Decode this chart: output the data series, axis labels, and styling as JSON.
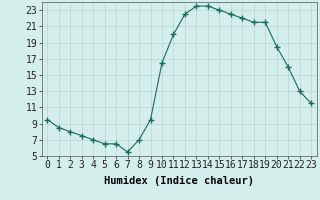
{
  "x": [
    0,
    1,
    2,
    3,
    4,
    5,
    6,
    7,
    8,
    9,
    10,
    11,
    12,
    13,
    14,
    15,
    16,
    17,
    18,
    19,
    20,
    21,
    22,
    23
  ],
  "y": [
    9.5,
    8.5,
    8.0,
    7.5,
    7.0,
    6.5,
    6.5,
    5.5,
    7.0,
    9.5,
    16.5,
    20.0,
    22.5,
    23.5,
    23.5,
    23.0,
    22.5,
    22.0,
    21.5,
    21.5,
    18.5,
    16.0,
    13.0,
    11.5
  ],
  "xlabel": "Humidex (Indice chaleur)",
  "ylim": [
    5,
    24
  ],
  "xlim": [
    -0.5,
    23.5
  ],
  "yticks": [
    5,
    7,
    9,
    11,
    13,
    15,
    17,
    19,
    21,
    23
  ],
  "xticks": [
    0,
    1,
    2,
    3,
    4,
    5,
    6,
    7,
    8,
    9,
    10,
    11,
    12,
    13,
    14,
    15,
    16,
    17,
    18,
    19,
    20,
    21,
    22,
    23
  ],
  "line_color": "#1a6b5a",
  "marker_color": "#1a6b5a",
  "bg_color": "#d4eeeb",
  "grid_color": "#b8d4d0",
  "xlabel_fontsize": 7.5,
  "tick_fontsize": 7.0,
  "fig_width": 3.2,
  "fig_height": 2.0,
  "dpi": 100
}
